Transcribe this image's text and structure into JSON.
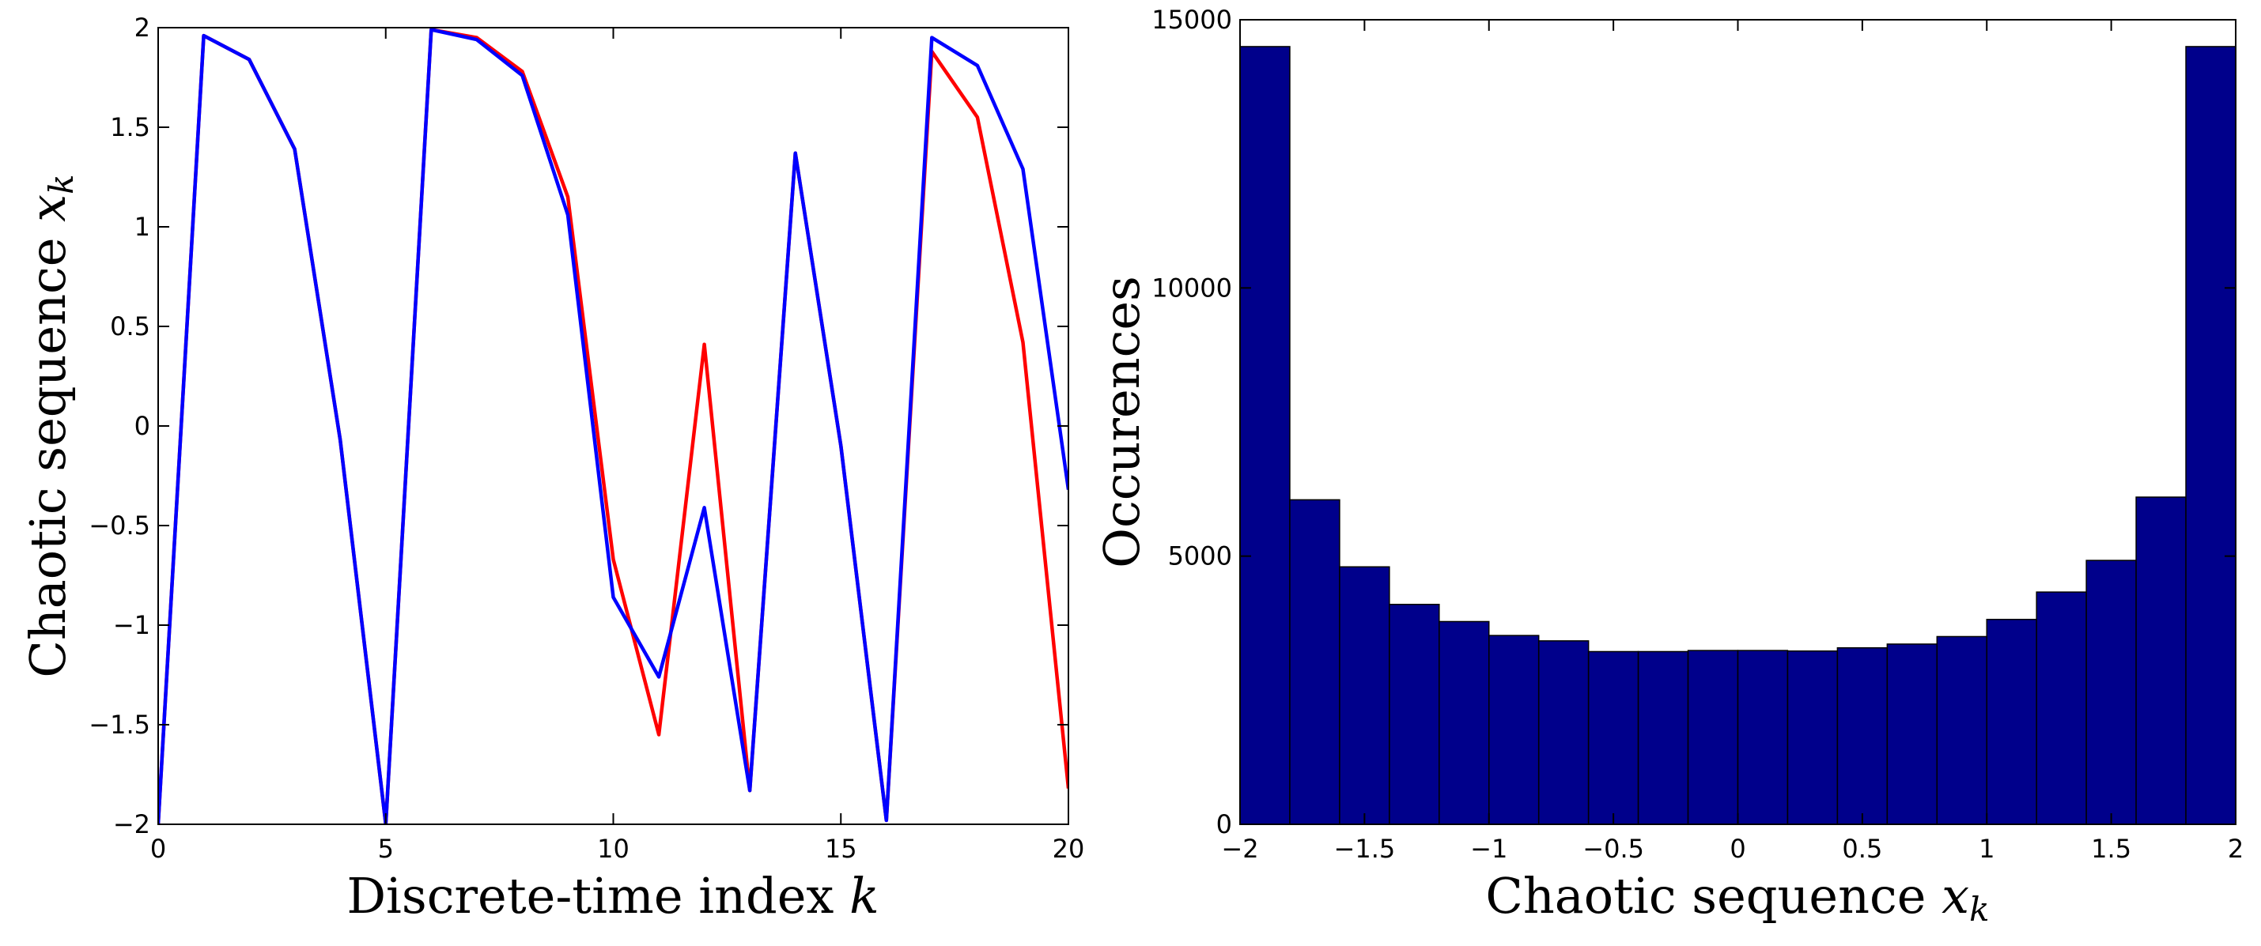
{
  "chart_data": [
    {
      "type": "line",
      "title": "",
      "xlabel": "Discrete-time index",
      "xlabel_symbol": "k",
      "ylabel": "Chaotic sequence",
      "ylabel_symbol": "x",
      "ylabel_subscript": "k",
      "xlim": [
        0,
        20
      ],
      "ylim": [
        -2,
        2
      ],
      "xticks": [
        0,
        5,
        10,
        15,
        20
      ],
      "xtick_labels": [
        "0",
        "5",
        "10",
        "15",
        "20"
      ],
      "yticks": [
        -2,
        -1.5,
        -1,
        -0.5,
        0,
        0.5,
        1,
        1.5,
        2
      ],
      "ytick_labels": [
        "−2",
        "−1.5",
        "−1",
        "−0.5",
        "0",
        "0.5",
        "1",
        "1.5",
        "2"
      ],
      "grid": false,
      "x": [
        0,
        1,
        2,
        3,
        4,
        5,
        6,
        7,
        8,
        9,
        10,
        11,
        12,
        13,
        14,
        15,
        16,
        17,
        18,
        19,
        20
      ],
      "series": [
        {
          "name": "series-red",
          "color": "#ff0000",
          "values": [
            -2.0,
            1.96,
            1.84,
            1.39,
            -0.07,
            -2.0,
            1.99,
            1.95,
            1.78,
            1.15,
            -0.67,
            -1.55,
            0.41,
            -1.83,
            1.37,
            -0.1,
            -1.98,
            1.88,
            1.55,
            0.42,
            -1.82
          ]
        },
        {
          "name": "series-blue",
          "color": "#0000ff",
          "values": [
            -2.0,
            1.96,
            1.84,
            1.39,
            -0.07,
            -2.0,
            1.99,
            1.94,
            1.76,
            1.06,
            -0.86,
            -1.26,
            -0.41,
            -1.83,
            1.37,
            -0.1,
            -1.98,
            1.95,
            1.81,
            1.29,
            -0.32
          ]
        }
      ]
    },
    {
      "type": "bar",
      "title": "",
      "xlabel": "Chaotic sequence",
      "xlabel_symbol": "x",
      "xlabel_subscript": "k",
      "ylabel": "Occurences",
      "xlim": [
        -2,
        2
      ],
      "ylim": [
        0,
        15000
      ],
      "xticks": [
        -2,
        -1.5,
        -1,
        -0.5,
        0,
        0.5,
        1,
        1.5,
        2
      ],
      "xtick_labels": [
        "−2",
        "−1.5",
        "−1",
        "−0.5",
        "0",
        "0.5",
        "1",
        "1.5",
        "2"
      ],
      "yticks": [
        0,
        5000,
        10000,
        15000
      ],
      "ytick_labels": [
        "0",
        "5000",
        "10000",
        "15000"
      ],
      "grid": false,
      "bar_color": "#00008b",
      "bin_edges": [
        -2.0,
        -1.8,
        -1.6,
        -1.4,
        -1.2,
        -1.0,
        -0.8,
        -0.6,
        -0.4,
        -0.2,
        0.0,
        0.2,
        0.4,
        0.6,
        0.8,
        1.0,
        1.2,
        1.4,
        1.6,
        1.8,
        2.0
      ],
      "values": [
        14500,
        6050,
        4800,
        4100,
        3780,
        3520,
        3420,
        3220,
        3220,
        3240,
        3240,
        3230,
        3290,
        3360,
        3500,
        3820,
        4330,
        4920,
        6100,
        14500
      ]
    }
  ]
}
